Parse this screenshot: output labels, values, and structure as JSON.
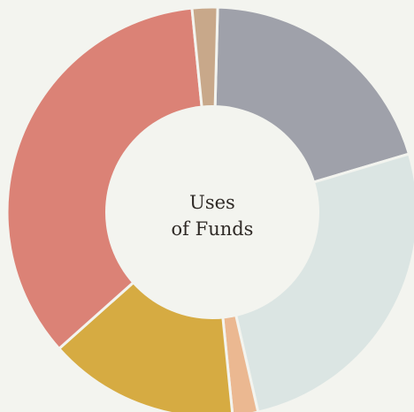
{
  "chart_data": {
    "type": "pie",
    "variant": "donut",
    "title": "",
    "center_label": [
      "Uses",
      "of Funds"
    ],
    "legend": "none",
    "slices": [
      {
        "value": 20.0,
        "color": "#9fa1aa"
      },
      {
        "value": 26.0,
        "color": "#dbe5e3"
      },
      {
        "value": 2.0,
        "color": "#ebb891"
      },
      {
        "value": 15.0,
        "color": "#d6ab42"
      },
      {
        "value": 35.0,
        "color": "#db8276"
      },
      {
        "value": 2.0,
        "color": "#c8a88a"
      }
    ]
  }
}
